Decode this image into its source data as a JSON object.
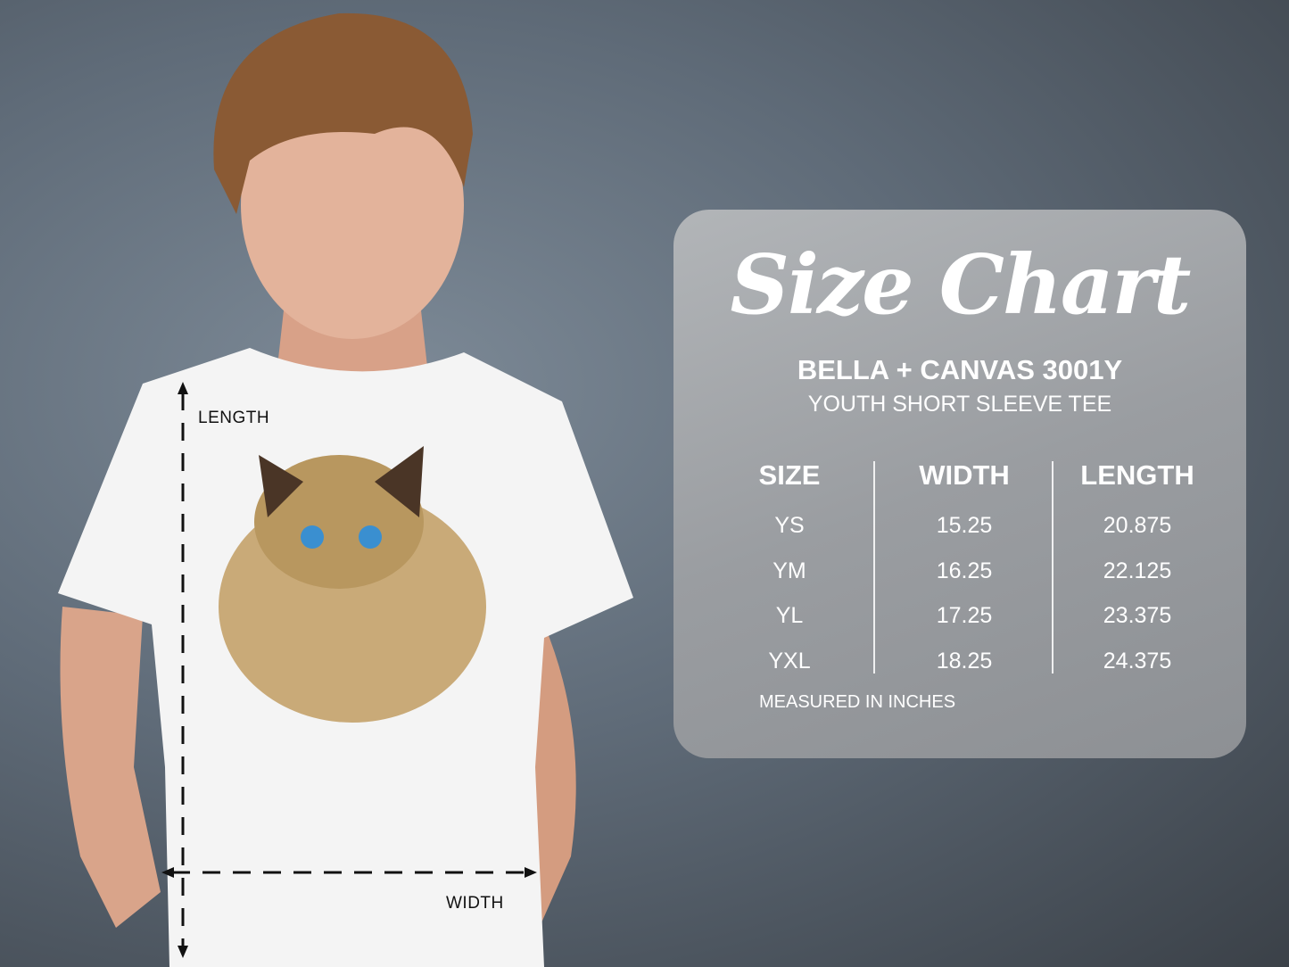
{
  "labels": {
    "length": "LENGTH",
    "width": "WIDTH"
  },
  "card": {
    "title": "Size Chart",
    "brand": "BELLA + CANVAS 3001Y",
    "subtitle": "YOUTH SHORT SLEEVE TEE",
    "columns": [
      "SIZE",
      "WIDTH",
      "LENGTH"
    ],
    "rows": [
      [
        "YS",
        "15.25",
        "20.875"
      ],
      [
        "YM",
        "16.25",
        "22.125"
      ],
      [
        "YL",
        "17.25",
        "23.375"
      ],
      [
        "YXL",
        "18.25",
        "24.375"
      ]
    ],
    "note": "MEASURED IN INCHES"
  },
  "colors": {
    "card": "#9ea1a5",
    "text": "#ffffff",
    "shirt": "#f4f4f4"
  }
}
